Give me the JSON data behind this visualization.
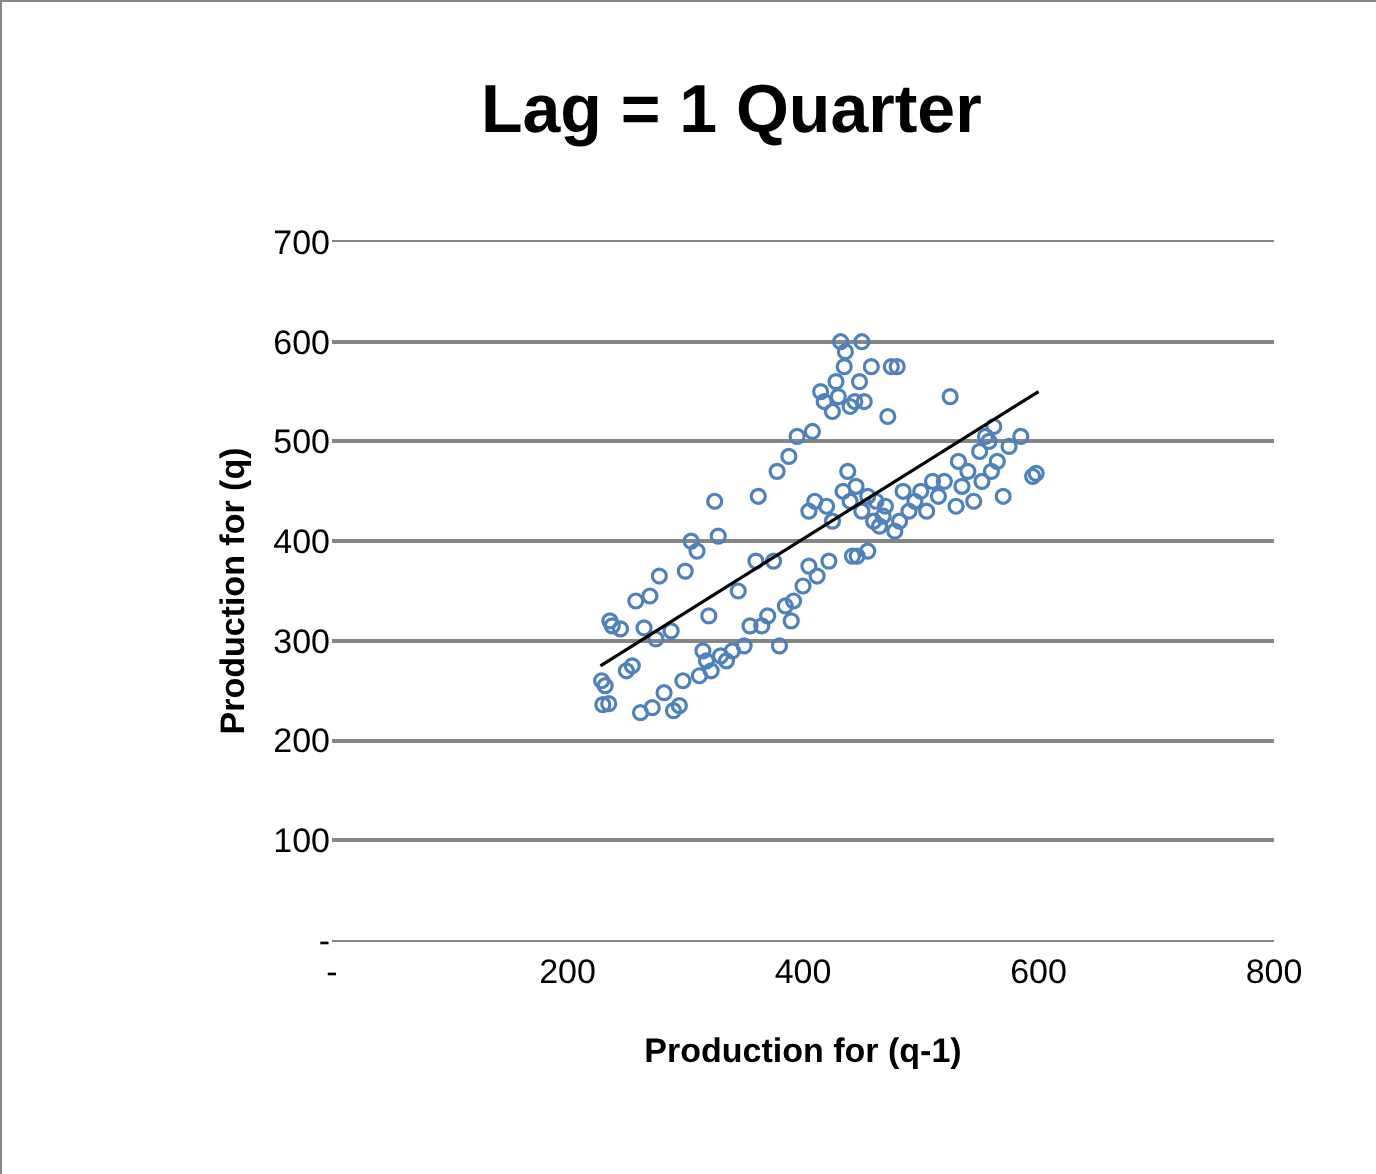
{
  "chart_data": {
    "type": "scatter",
    "title": "Lag = 1 Quarter",
    "xlabel": "Production for (q-1)",
    "ylabel": "Production for (q)",
    "xlim": [
      0,
      800
    ],
    "xticks": [
      {
        "value": 0,
        "label": "-"
      },
      200,
      400,
      600,
      800
    ],
    "ylim": [
      0,
      700
    ],
    "yticks": [
      {
        "value": 0,
        "label": "-"
      },
      100,
      200,
      300,
      400,
      500,
      600,
      700
    ],
    "grid": "y",
    "marker": "circle",
    "series": [
      {
        "color": "#4f81bd",
        "x": [
          229,
          230,
          232,
          235,
          236,
          238,
          245,
          250,
          255,
          258,
          262,
          265,
          270,
          272,
          275,
          278,
          282,
          288,
          290,
          295,
          298,
          300,
          305,
          310,
          312,
          315,
          318,
          320,
          322,
          325,
          328,
          330,
          335,
          340,
          345,
          350,
          355,
          360,
          362,
          365,
          370,
          375,
          378,
          380,
          385,
          388,
          390,
          392,
          395,
          400,
          405,
          405,
          408,
          410,
          412,
          415,
          418,
          420,
          422,
          425,
          425,
          428,
          430,
          432,
          434,
          435,
          436,
          438,
          440,
          440,
          442,
          444,
          445,
          446,
          448,
          450,
          450,
          452,
          455,
          455,
          458,
          460,
          462,
          465,
          468,
          470,
          472,
          475,
          478,
          480,
          482,
          485,
          490,
          495,
          500,
          505,
          510,
          515,
          520,
          525,
          530,
          532,
          535,
          540,
          545,
          550,
          552,
          555,
          558,
          560,
          562,
          565,
          570,
          575,
          585,
          595,
          598
        ],
        "values": [
          260,
          236,
          255,
          237,
          320,
          315,
          312,
          270,
          275,
          340,
          228,
          313,
          345,
          233,
          302,
          365,
          248,
          310,
          230,
          235,
          260,
          370,
          400,
          390,
          265,
          290,
          280,
          325,
          270,
          440,
          405,
          285,
          280,
          290,
          350,
          295,
          315,
          380,
          445,
          315,
          325,
          380,
          470,
          295,
          335,
          485,
          320,
          340,
          505,
          355,
          375,
          430,
          510,
          440,
          365,
          550,
          540,
          435,
          380,
          530,
          420,
          560,
          545,
          600,
          450,
          575,
          590,
          470,
          535,
          440,
          385,
          540,
          455,
          385,
          560,
          600,
          430,
          540,
          390,
          445,
          575,
          420,
          440,
          415,
          425,
          435,
          525,
          575,
          410,
          575,
          420,
          450,
          430,
          440,
          450,
          430,
          460,
          445,
          460,
          545,
          435,
          480,
          455,
          470,
          440,
          490,
          460,
          505,
          500,
          470,
          515,
          480,
          445,
          495,
          505,
          465,
          468
        ]
      },
      {
        "type": "line",
        "color": "#000000",
        "marker": "none",
        "line_style": "solid",
        "x": [
          228,
          600
        ],
        "values": [
          275,
          550
        ]
      }
    ]
  }
}
